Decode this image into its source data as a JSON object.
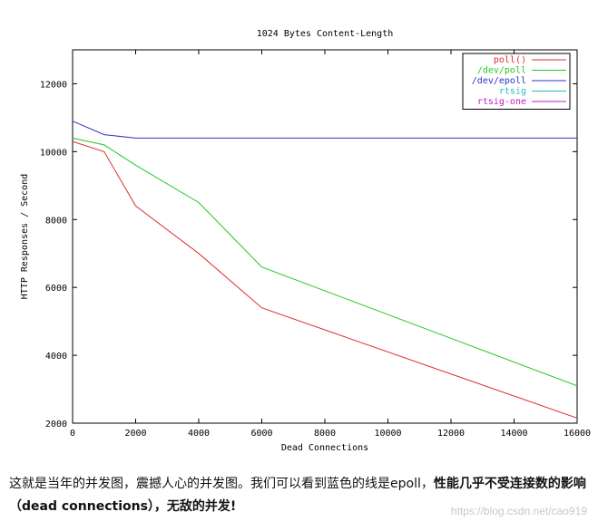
{
  "chart_data": {
    "type": "line",
    "title": "1024 Bytes Content-Length",
    "xlabel": "Dead Connections",
    "ylabel": "HTTP Responses / Second",
    "xlim": [
      0,
      16000
    ],
    "ylim": [
      2000,
      13000
    ],
    "xticks": [
      0,
      2000,
      4000,
      6000,
      8000,
      10000,
      12000,
      14000,
      16000
    ],
    "yticks": [
      2000,
      4000,
      6000,
      8000,
      10000,
      12000
    ],
    "grid": false,
    "legend_position": "top-right",
    "series": [
      {
        "name": "poll()",
        "color": "#e03030",
        "x": [
          0,
          1000,
          2000,
          4000,
          6000,
          16000
        ],
        "y": [
          10300,
          10000,
          8400,
          7000,
          5400,
          2150
        ]
      },
      {
        "name": "/dev/poll",
        "color": "#22c822",
        "x": [
          0,
          1000,
          2000,
          4000,
          6000,
          16000
        ],
        "y": [
          10400,
          10200,
          9600,
          8500,
          6600,
          3100
        ]
      },
      {
        "name": "/dev/epoll",
        "color": "#3030c8",
        "x": [
          0,
          1000,
          2000,
          16000
        ],
        "y": [
          10900,
          10500,
          10400,
          10400
        ]
      },
      {
        "name": "rtsig",
        "color": "#20c0c0",
        "x": [],
        "y": []
      },
      {
        "name": "rtsig-one",
        "color": "#c020c0",
        "x": [],
        "y": []
      }
    ]
  },
  "caption": {
    "normal": "这就是当年的并发图，震撼人心的并发图。我们可以看到蓝色的线是epoll，",
    "bold": "性能几乎不受连接数的影响（dead connections），无敌的并发!"
  },
  "watermark": "https://blog.csdn.net/cao919"
}
